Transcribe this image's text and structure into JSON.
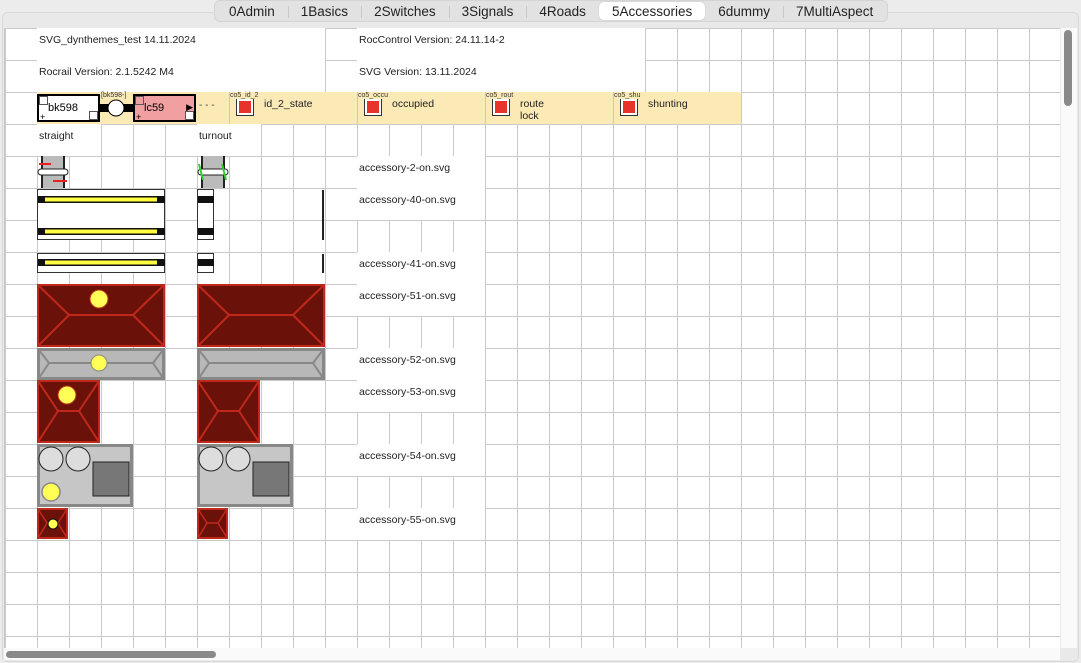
{
  "tabs": [
    {
      "label": "0Admin"
    },
    {
      "label": "1Basics"
    },
    {
      "label": "2Switches"
    },
    {
      "label": "3Signals"
    },
    {
      "label": "4Roads"
    },
    {
      "label": "5Accessories",
      "selected": true
    },
    {
      "label": "6dummy"
    },
    {
      "label": "7MultiAspect"
    }
  ],
  "header": {
    "title": "SVG_dynthemes_test 14.11.2024",
    "rocrail_version": "Rocrail Version: 2.1.5242 M4",
    "roccontrol_version": "RocControl Version: 24.11.14-2",
    "svg_version": "SVG Version: 13.11.2024"
  },
  "blocks": {
    "block1": "bk598",
    "connector": "[bk598-]",
    "block2": "lc59",
    "dashes": "- - -"
  },
  "outputs": [
    {
      "id": "co5_id_2",
      "label": "id_2_state"
    },
    {
      "id": "co5_occu",
      "label": "occupied"
    },
    {
      "id": "co5_rout",
      "label": "route lock"
    },
    {
      "id": "co5_shu",
      "label": "shunting"
    }
  ],
  "columns": {
    "straight": "straight",
    "turnout": "turnout"
  },
  "accessories": [
    "accessory-2-on.svg",
    "accessory-40-on.svg",
    "accessory-41-on.svg",
    "accessory-51-on.svg",
    "accessory-52-on.svg",
    "accessory-53-on.svg",
    "accessory-54-on.svg",
    "accessory-55-on.svg"
  ],
  "colors": {
    "band": "#fbe9b6",
    "lamp": "#ffff55",
    "dark_red": "#6a120a",
    "red_border": "#c0281c",
    "gray": "#b8b8b8",
    "output_on": "#e8322a",
    "locomotive": "#f0a0a0"
  }
}
